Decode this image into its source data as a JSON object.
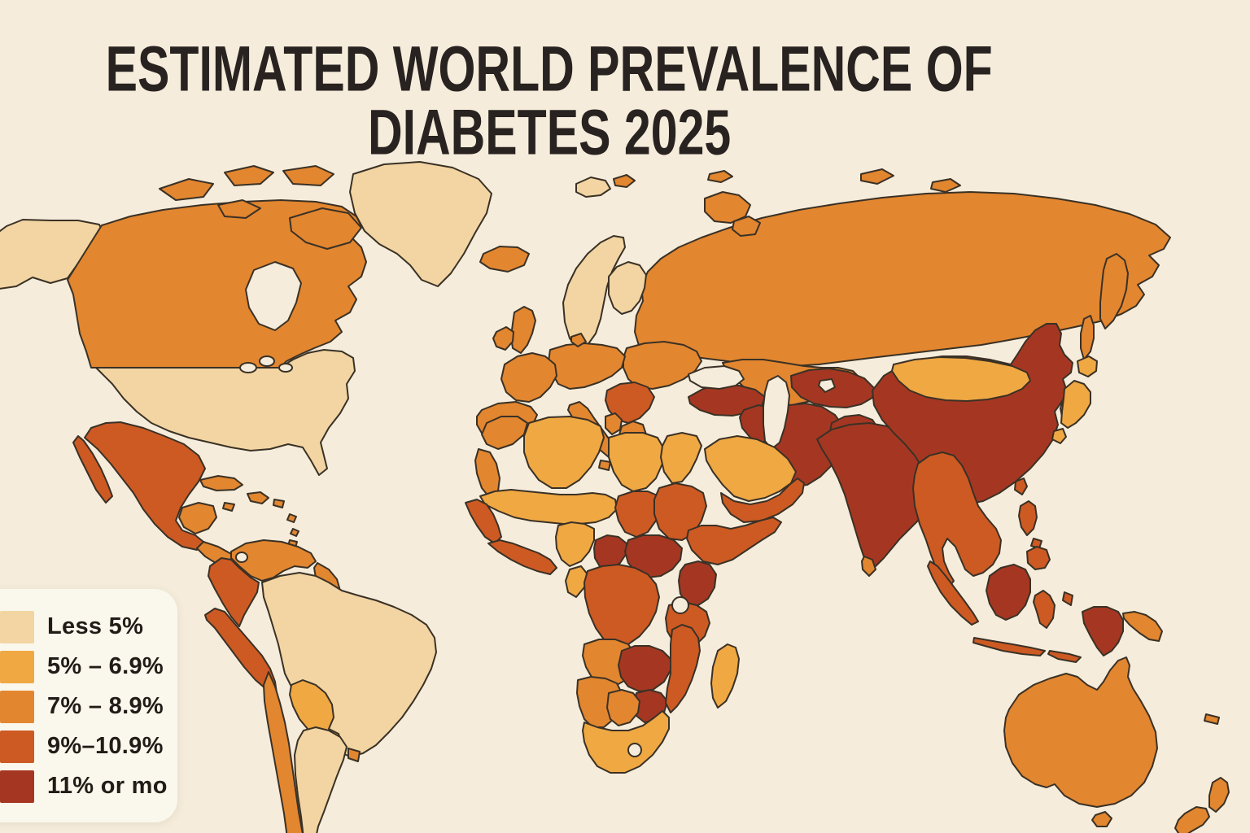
{
  "title": {
    "line1": "ESTIMATED WORLD PREVALENCE OF",
    "line2": "DIABETES 2025"
  },
  "legend": {
    "items": [
      {
        "label": "Less 5%",
        "category": "less5"
      },
      {
        "label": "5% – 6.9%",
        "category": "r5_69"
      },
      {
        "label": "7% – 8.9%",
        "category": "r7_89"
      },
      {
        "label": "9%–10.9%",
        "category": "r9_109"
      },
      {
        "label": "11% or mo",
        "category": "r11plus"
      }
    ]
  },
  "palette": {
    "less5": "#f2d5a2",
    "r5_69": "#f0a843",
    "r7_89": "#e2862f",
    "r9_109": "#cd5a23",
    "r11plus": "#a53722",
    "water": "#f5ecdb"
  },
  "colors": {
    "background": "#f5ecdb",
    "panel": "#faf7ec",
    "stroke": "#3a3126",
    "title": "#282220"
  },
  "map": {
    "regions": {
      "alaska": "less5",
      "canada": "r7_89",
      "hudson-bay": "water",
      "arctic-islands": "r7_89",
      "baffin": "r7_89",
      "greenland": "less5",
      "iceland": "r7_89",
      "usa": "less5",
      "great-lakes": "water",
      "mexico": "r9_109",
      "yucatan": "r7_89",
      "central-america": "r7_89",
      "cuba": "r7_89",
      "hispaniola": "r7_89",
      "jamaica": "r7_89",
      "puerto-rico": "r7_89",
      "antilles": "r7_89",
      "trinidad": "r7_89",
      "venezuela": "r7_89",
      "lake-maracaibo": "water",
      "guyanas": "r7_89",
      "colombia": "r9_109",
      "peru": "r9_109",
      "brazil": "less5",
      "bolivia": "r5_69",
      "chile": "r7_89",
      "argentina": "less5",
      "uruguay": "r7_89",
      "russia": "r7_89",
      "novaya-zemlya": "r7_89",
      "russia-arctic-islands": "r7_89",
      "svalbard": "less5",
      "svalbard-east": "r7_89",
      "scandinavia": "less5",
      "finland": "less5",
      "uk": "r7_89",
      "ireland": "r7_89",
      "iberia": "r7_89",
      "france": "r7_89",
      "central-europe": "r7_89",
      "eastern-europe": "r7_89",
      "balkans": "r9_109",
      "greece": "r7_89",
      "italy": "r7_89",
      "denmark": "r7_89",
      "kazakhstan": "r7_89",
      "mongolia": "r5_69",
      "turkey": "r11plus",
      "iraq-syria": "r11plus",
      "iran": "r11plus",
      "central-asia": "r11plus",
      "afghanistan": "r11plus",
      "pakistan": "r11plus",
      "black-sea": "water",
      "caspian-sea": "water",
      "aral-sea": "water",
      "saudi-arabia": "r5_69",
      "yemen-oman": "r9_109",
      "morocco": "r7_89",
      "western-sahara": "r7_89",
      "algeria": "r5_69",
      "tunisia": "r7_89",
      "libya": "r5_69",
      "egypt": "r5_69",
      "sahel": "r5_69",
      "chad": "r9_109",
      "sudan": "r9_109",
      "senegal": "r9_109",
      "guinea-coast": "r9_109",
      "nigeria": "r5_69",
      "cameroon": "r11plus",
      "car-south-sudan": "r11plus",
      "horn-of-africa": "r9_109",
      "uganda-kenya": "r11plus",
      "drc": "r9_109",
      "congo-gabon": "r5_69",
      "tanzania": "r9_109",
      "angola": "r7_89",
      "zambia": "r11plus",
      "zimbabwe": "r11plus",
      "mozambique": "r9_109",
      "namibia": "r7_89",
      "botswana": "r7_89",
      "south-africa": "r5_69",
      "lesotho": "water",
      "madagascar": "r5_69",
      "lake-victoria": "water",
      "india": "r11plus",
      "sri-lanka": "r7_89",
      "china": "r11plus",
      "south-korea": "r7_89",
      "japan": "r5_69",
      "taiwan": "r9_109",
      "indochina": "r9_109",
      "sumatra": "r9_109",
      "java": "r9_109",
      "lesser-sunda": "r9_109",
      "borneo": "r11plus",
      "sulawesi": "r9_109",
      "moluccas": "r9_109",
      "new-guinea-west": "r11plus",
      "new-guinea-east": "r7_89",
      "philippines": "r9_109",
      "australia": "r7_89",
      "tasmania": "r7_89",
      "new-zealand": "r7_89",
      "new-caledonia": "r7_89"
    }
  }
}
